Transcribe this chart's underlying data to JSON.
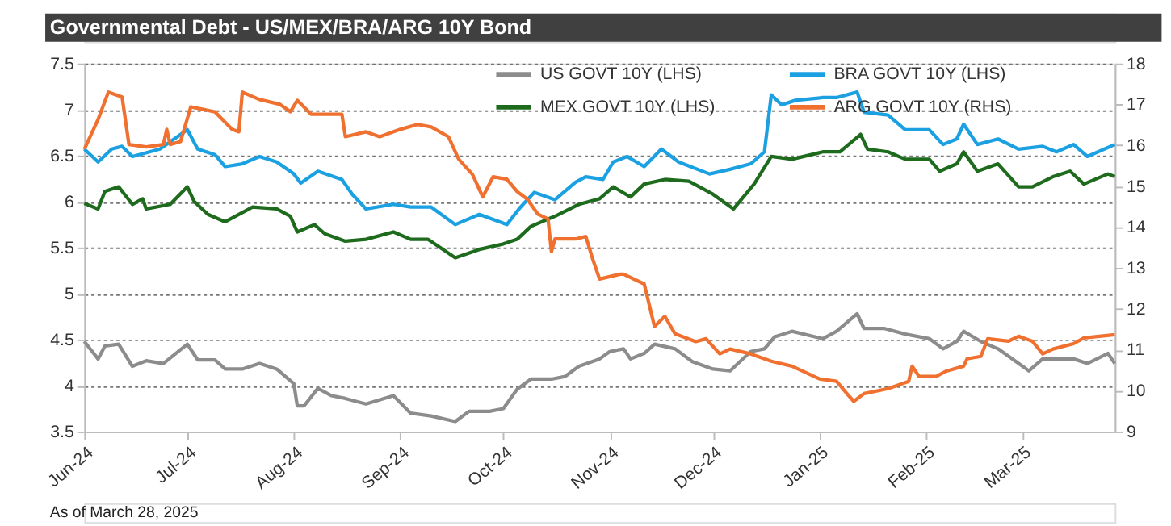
{
  "chart_data": {
    "type": "line",
    "title": "Governmental Debt - US/MEX/BRA/ARG 10Y Bond",
    "annotations": [
      "As of March 28, 2025"
    ],
    "xlim": [
      "2024-06-01",
      "2025-03-28"
    ],
    "xticks": [
      {
        "value": "2024-06-01",
        "label": "Jun-24"
      },
      {
        "value": "2024-07-01",
        "label": "Jul-24"
      },
      {
        "value": "2024-08-01",
        "label": "Aug-24"
      },
      {
        "value": "2024-09-01",
        "label": "Sep-24"
      },
      {
        "value": "2024-10-01",
        "label": "Oct-24"
      },
      {
        "value": "2024-11-01",
        "label": "Nov-24"
      },
      {
        "value": "2024-12-01",
        "label": "Dec-24"
      },
      {
        "value": "2025-01-01",
        "label": "Jan-25"
      },
      {
        "value": "2025-02-01",
        "label": "Feb-25"
      },
      {
        "value": "2025-03-01",
        "label": "Mar-25"
      }
    ],
    "ylim": [
      3.5,
      7.5
    ],
    "yticks": [
      3.5,
      4,
      4.5,
      5,
      5.5,
      6,
      6.5,
      7,
      7.5
    ],
    "y2lim": [
      9,
      18
    ],
    "y2ticks": [
      9,
      10,
      11,
      12,
      13,
      14,
      15,
      16,
      17,
      18
    ],
    "grid": "y",
    "legend": "top",
    "line_style": "solid",
    "marker": "none",
    "series": [
      {
        "name": "US GOVT 10Y (LHS)",
        "color": "#8c8c8c",
        "x": [
          "2024-06-01",
          "2024-06-05",
          "2024-06-07",
          "2024-06-11",
          "2024-06-15",
          "2024-06-19",
          "2024-06-24",
          "2024-07-01",
          "2024-07-04",
          "2024-07-09",
          "2024-07-12",
          "2024-07-17",
          "2024-07-22",
          "2024-07-27",
          "2024-08-01",
          "2024-08-02",
          "2024-08-04",
          "2024-08-08",
          "2024-08-12",
          "2024-08-16",
          "2024-08-22",
          "2024-08-30",
          "2024-09-04",
          "2024-09-10",
          "2024-09-17",
          "2024-09-21",
          "2024-09-27",
          "2024-10-01",
          "2024-10-05",
          "2024-10-09",
          "2024-10-15",
          "2024-10-19",
          "2024-10-23",
          "2024-10-29",
          "2024-11-01",
          "2024-11-05",
          "2024-11-07",
          "2024-11-11",
          "2024-11-14",
          "2024-11-20",
          "2024-11-25",
          "2024-12-01",
          "2024-12-06",
          "2024-12-12",
          "2024-12-16",
          "2024-12-19",
          "2024-12-24",
          "2025-01-02",
          "2025-01-06",
          "2025-01-12",
          "2025-01-14",
          "2025-01-20",
          "2025-01-26",
          "2025-02-02",
          "2025-02-06",
          "2025-02-10",
          "2025-02-12",
          "2025-02-17",
          "2025-02-22",
          "2025-03-03",
          "2025-03-07",
          "2025-03-11",
          "2025-03-16",
          "2025-03-20",
          "2025-03-26",
          "2025-03-28"
        ],
        "values": [
          4.48,
          4.29,
          4.43,
          4.45,
          4.21,
          4.27,
          4.24,
          4.45,
          4.28,
          4.28,
          4.18,
          4.18,
          4.24,
          4.18,
          4.02,
          3.78,
          3.78,
          3.97,
          3.89,
          3.86,
          3.8,
          3.89,
          3.7,
          3.67,
          3.61,
          3.72,
          3.72,
          3.75,
          3.96,
          4.07,
          4.07,
          4.1,
          4.21,
          4.29,
          4.37,
          4.4,
          4.29,
          4.35,
          4.45,
          4.4,
          4.26,
          4.18,
          4.16,
          4.37,
          4.4,
          4.53,
          4.59,
          4.51,
          4.59,
          4.78,
          4.62,
          4.62,
          4.56,
          4.51,
          4.4,
          4.48,
          4.59,
          4.48,
          4.4,
          4.16,
          4.29,
          4.29,
          4.29,
          4.24,
          4.35,
          4.24
        ]
      },
      {
        "name": "MEX GOVT 10Y (LHS)",
        "color": "#1e6b1e",
        "x": [
          "2024-06-01",
          "2024-06-05",
          "2024-06-07",
          "2024-06-11",
          "2024-06-15",
          "2024-06-18",
          "2024-06-19",
          "2024-06-26",
          "2024-07-01",
          "2024-07-03",
          "2024-07-07",
          "2024-07-12",
          "2024-07-20",
          "2024-07-27",
          "2024-07-31",
          "2024-08-02",
          "2024-08-07",
          "2024-08-10",
          "2024-08-16",
          "2024-08-22",
          "2024-08-30",
          "2024-09-04",
          "2024-09-09",
          "2024-09-17",
          "2024-09-24",
          "2024-10-01",
          "2024-10-05",
          "2024-10-09",
          "2024-10-16",
          "2024-10-23",
          "2024-10-29",
          "2024-11-02",
          "2024-11-07",
          "2024-11-11",
          "2024-11-17",
          "2024-11-24",
          "2024-12-01",
          "2024-12-07",
          "2024-12-13",
          "2024-12-18",
          "2024-12-24",
          "2025-01-02",
          "2025-01-07",
          "2025-01-13",
          "2025-01-15",
          "2025-01-21",
          "2025-01-26",
          "2025-02-02",
          "2025-02-05",
          "2025-02-10",
          "2025-02-12",
          "2025-02-16",
          "2025-02-22",
          "2025-02-28",
          "2025-03-04",
          "2025-03-10",
          "2025-03-15",
          "2025-03-19",
          "2025-03-26",
          "2025-03-28"
        ],
        "values": [
          5.98,
          5.92,
          6.11,
          6.16,
          5.97,
          6.03,
          5.92,
          5.97,
          6.16,
          6.0,
          5.86,
          5.78,
          5.94,
          5.92,
          5.84,
          5.67,
          5.75,
          5.65,
          5.57,
          5.59,
          5.67,
          5.59,
          5.59,
          5.39,
          5.48,
          5.54,
          5.59,
          5.73,
          5.84,
          5.97,
          6.03,
          6.16,
          6.05,
          6.19,
          6.24,
          6.22,
          6.08,
          5.92,
          6.19,
          6.49,
          6.46,
          6.54,
          6.54,
          6.73,
          6.57,
          6.54,
          6.46,
          6.46,
          6.33,
          6.41,
          6.54,
          6.33,
          6.41,
          6.16,
          6.16,
          6.27,
          6.33,
          6.19,
          6.3,
          6.27
        ]
      },
      {
        "name": "BRA GOVT 10Y (LHS)",
        "color": "#1ba1e2",
        "x": [
          "2024-06-01",
          "2024-06-05",
          "2024-06-09",
          "2024-06-12",
          "2024-06-15",
          "2024-06-23",
          "2024-07-01",
          "2024-07-04",
          "2024-07-09",
          "2024-07-12",
          "2024-07-17",
          "2024-07-22",
          "2024-07-27",
          "2024-08-01",
          "2024-08-03",
          "2024-08-08",
          "2024-08-15",
          "2024-08-18",
          "2024-08-22",
          "2024-08-30",
          "2024-09-04",
          "2024-09-10",
          "2024-09-17",
          "2024-09-24",
          "2024-10-02",
          "2024-10-06",
          "2024-10-10",
          "2024-10-16",
          "2024-10-22",
          "2024-10-25",
          "2024-10-30",
          "2024-11-02",
          "2024-11-06",
          "2024-11-11",
          "2024-11-16",
          "2024-11-21",
          "2024-11-30",
          "2024-12-06",
          "2024-12-12",
          "2024-12-16",
          "2024-12-18",
          "2024-12-21",
          "2024-12-25",
          "2025-01-02",
          "2025-01-06",
          "2025-01-12",
          "2025-01-14",
          "2025-01-21",
          "2025-01-26",
          "2025-02-02",
          "2025-02-06",
          "2025-02-10",
          "2025-02-12",
          "2025-02-16",
          "2025-02-22",
          "2025-02-28",
          "2025-03-07",
          "2025-03-11",
          "2025-03-16",
          "2025-03-20",
          "2025-03-28"
        ],
        "values": [
          6.57,
          6.43,
          6.57,
          6.6,
          6.49,
          6.57,
          6.78,
          6.57,
          6.51,
          6.38,
          6.41,
          6.49,
          6.43,
          6.3,
          6.2,
          6.33,
          6.24,
          6.08,
          5.92,
          5.97,
          5.94,
          5.94,
          5.75,
          5.86,
          5.75,
          5.94,
          6.1,
          6.02,
          6.21,
          6.27,
          6.24,
          6.43,
          6.49,
          6.38,
          6.57,
          6.43,
          6.3,
          6.35,
          6.41,
          6.54,
          7.16,
          7.05,
          7.1,
          7.13,
          7.13,
          7.19,
          6.97,
          6.94,
          6.78,
          6.78,
          6.62,
          6.68,
          6.84,
          6.62,
          6.68,
          6.57,
          6.6,
          6.54,
          6.62,
          6.49,
          6.62
        ]
      },
      {
        "name": "ARG GOVT 10Y (RHS)",
        "color": "#f07030",
        "axis": "y2",
        "x": [
          "2024-06-01",
          "2024-06-05",
          "2024-06-08",
          "2024-06-12",
          "2024-06-14",
          "2024-06-19",
          "2024-06-24",
          "2024-06-25",
          "2024-06-26",
          "2024-06-29",
          "2024-07-02",
          "2024-07-09",
          "2024-07-14",
          "2024-07-16",
          "2024-07-17",
          "2024-07-22",
          "2024-07-28",
          "2024-07-31",
          "2024-08-02",
          "2024-08-06",
          "2024-08-15",
          "2024-08-16",
          "2024-08-22",
          "2024-08-26",
          "2024-09-01",
          "2024-09-06",
          "2024-09-10",
          "2024-09-15",
          "2024-09-18",
          "2024-09-22",
          "2024-09-25",
          "2024-09-28",
          "2024-10-02",
          "2024-10-05",
          "2024-10-08",
          "2024-10-11",
          "2024-10-14",
          "2024-10-15",
          "2024-10-16",
          "2024-10-22",
          "2024-10-25",
          "2024-10-27",
          "2024-10-29",
          "2024-11-04",
          "2024-11-05",
          "2024-11-11",
          "2024-11-14",
          "2024-11-17",
          "2024-11-20",
          "2024-11-26",
          "2024-11-29",
          "2024-12-03",
          "2024-12-06",
          "2024-12-12",
          "2024-12-18",
          "2024-12-24",
          "2025-01-01",
          "2025-01-06",
          "2025-01-09",
          "2025-01-11",
          "2025-01-14",
          "2025-01-21",
          "2025-01-27",
          "2025-01-28",
          "2025-01-30",
          "2025-02-04",
          "2025-02-07",
          "2025-02-12",
          "2025-02-13",
          "2025-02-17",
          "2025-02-19",
          "2025-02-25",
          "2025-02-28",
          "2025-03-04",
          "2025-03-07",
          "2025-03-10",
          "2025-03-16",
          "2025-03-19",
          "2025-03-28"
        ],
        "values": [
          15.9,
          16.63,
          17.3,
          17.18,
          16.02,
          15.96,
          16.02,
          16.39,
          16.02,
          16.09,
          16.94,
          16.82,
          16.39,
          16.33,
          17.3,
          17.12,
          17.0,
          16.82,
          17.1,
          16.76,
          16.76,
          16.21,
          16.33,
          16.21,
          16.39,
          16.51,
          16.45,
          16.21,
          15.66,
          15.29,
          14.74,
          15.23,
          15.17,
          14.87,
          14.68,
          14.32,
          14.2,
          13.4,
          13.71,
          13.71,
          13.77,
          13.22,
          12.73,
          12.85,
          12.85,
          12.61,
          11.57,
          11.82,
          11.39,
          11.2,
          11.27,
          10.9,
          11.02,
          10.9,
          10.72,
          10.6,
          10.29,
          10.23,
          9.93,
          9.74,
          9.93,
          10.05,
          10.23,
          10.6,
          10.35,
          10.35,
          10.48,
          10.6,
          10.78,
          10.84,
          11.27,
          11.21,
          11.33,
          11.21,
          10.9,
          11.02,
          11.15,
          11.29,
          11.37
        ]
      }
    ]
  }
}
